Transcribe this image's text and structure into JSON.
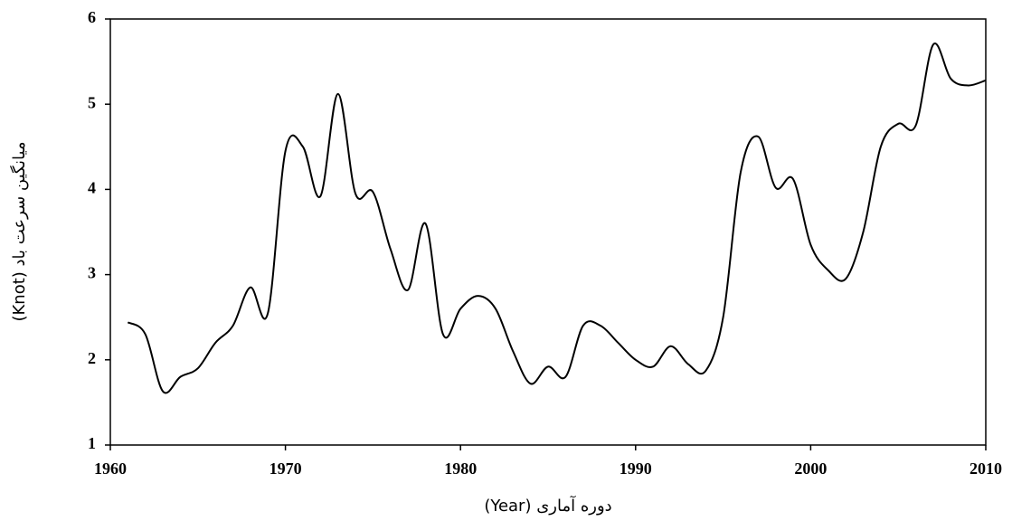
{
  "chart_data": {
    "type": "line",
    "x_label": "دوره آماری (Year)",
    "y_label": "میانگین سرعت  باد (Knot)",
    "x": [
      1961,
      1962,
      1963,
      1964,
      1965,
      1966,
      1967,
      1968,
      1969,
      1970,
      1971,
      1972,
      1973,
      1974,
      1975,
      1976,
      1977,
      1978,
      1979,
      1980,
      1981,
      1982,
      1983,
      1984,
      1985,
      1986,
      1987,
      1988,
      1989,
      1990,
      1991,
      1992,
      1993,
      1994,
      1995,
      1996,
      1997,
      1998,
      1999,
      2000,
      2001,
      2002,
      2003,
      2004,
      2005,
      2006,
      2007,
      2008,
      2009,
      2010
    ],
    "values": [
      2.44,
      2.3,
      1.63,
      1.8,
      1.9,
      2.2,
      2.4,
      2.85,
      2.55,
      4.45,
      4.5,
      3.92,
      5.12,
      3.95,
      3.97,
      3.3,
      2.82,
      3.6,
      2.3,
      2.6,
      2.75,
      2.6,
      2.1,
      1.72,
      1.92,
      1.8,
      2.4,
      2.4,
      2.2,
      2.0,
      1.92,
      2.16,
      1.95,
      1.87,
      2.5,
      4.2,
      4.62,
      4.02,
      4.12,
      3.35,
      3.05,
      2.95,
      3.5,
      4.5,
      4.77,
      4.75,
      5.7,
      5.3,
      5.22,
      5.28
    ],
    "color": "#000000",
    "xlim": [
      1960,
      2010
    ],
    "xticks": [
      1960,
      1970,
      1980,
      1990,
      2000,
      2010
    ],
    "ylim": [
      1,
      6
    ],
    "yticks": [
      1,
      2,
      3,
      4,
      5,
      6
    ]
  }
}
